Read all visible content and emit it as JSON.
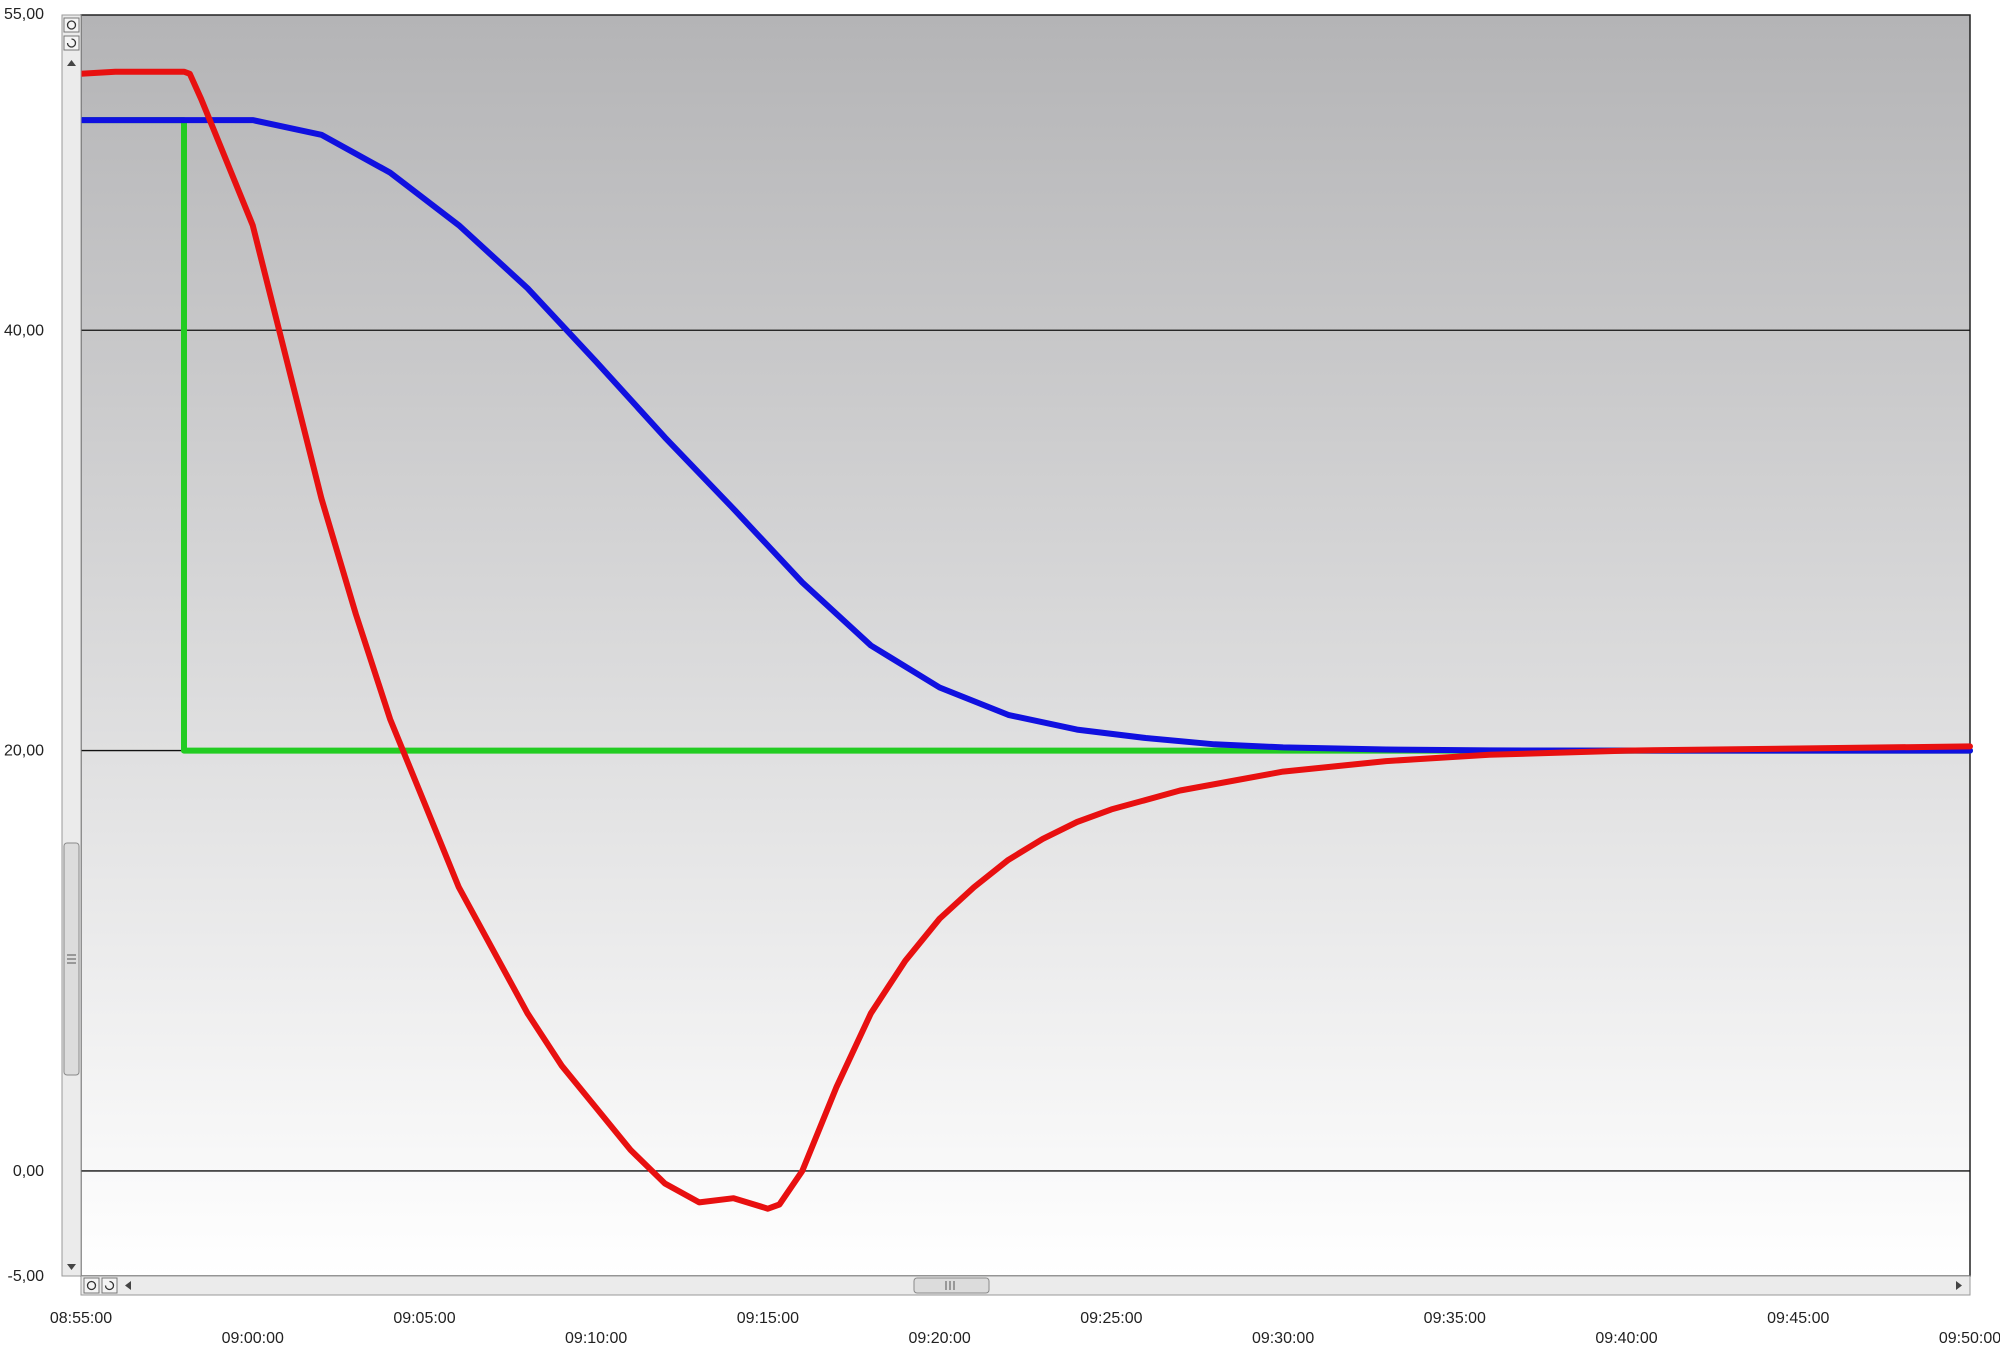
{
  "chart_data": {
    "type": "line",
    "title": "",
    "xlabel": "",
    "ylabel": "",
    "xlim": [
      "08:55:00",
      "09:50:00"
    ],
    "ylim": [
      -5,
      55
    ],
    "grid": true,
    "legend": "none",
    "y_ticks": [
      {
        "value": 55,
        "label": "55,00"
      },
      {
        "value": 40,
        "label": "40,00"
      },
      {
        "value": 20,
        "label": "20,00"
      },
      {
        "value": 0,
        "label": "0,00"
      },
      {
        "value": -5,
        "label": "-5,00"
      }
    ],
    "y_gridlines": [
      40,
      20,
      0
    ],
    "x_ticks": [
      "08:55:00",
      "09:00:00",
      "09:05:00",
      "09:10:00",
      "09:15:00",
      "09:20:00",
      "09:25:00",
      "09:30:00",
      "09:35:00",
      "09:40:00",
      "09:45:00",
      "09:50:00"
    ],
    "series": [
      {
        "color": "#e81010",
        "x": [
          "08:55:00",
          "08:56:00",
          "08:57:00",
          "08:58:00",
          "08:58:10",
          "08:58:30",
          "08:59:00",
          "09:00:00",
          "09:01:00",
          "09:02:00",
          "09:03:00",
          "09:04:00",
          "09:05:00",
          "09:06:00",
          "09:07:00",
          "09:08:00",
          "09:09:00",
          "09:10:00",
          "09:11:00",
          "09:12:00",
          "09:13:00",
          "09:14:00",
          "09:15:00",
          "09:15:20",
          "09:16:00",
          "09:17:00",
          "09:18:00",
          "09:19:00",
          "09:20:00",
          "09:21:00",
          "09:22:00",
          "09:23:00",
          "09:24:00",
          "09:25:00",
          "09:27:00",
          "09:30:00",
          "09:33:00",
          "09:36:00",
          "09:40:00",
          "09:45:00",
          "09:50:00"
        ],
        "values": [
          52.2,
          52.3,
          52.3,
          52.3,
          52.2,
          51,
          49,
          45,
          38.5,
          32,
          26.5,
          21.5,
          17.5,
          13.5,
          10.5,
          7.5,
          5,
          3,
          1,
          -0.6,
          -1.5,
          -1.3,
          -1.8,
          -1.6,
          0,
          4,
          7.5,
          10,
          12,
          13.5,
          14.8,
          15.8,
          16.6,
          17.2,
          18.1,
          19,
          19.5,
          19.8,
          20,
          20.1,
          20.2
        ]
      },
      {
        "color": "#1010e0",
        "x": [
          "08:55:00",
          "08:58:00",
          "09:00:00",
          "09:02:00",
          "09:04:00",
          "09:06:00",
          "09:08:00",
          "09:10:00",
          "09:12:00",
          "09:14:00",
          "09:16:00",
          "09:18:00",
          "09:20:00",
          "09:22:00",
          "09:24:00",
          "09:26:00",
          "09:28:00",
          "09:30:00",
          "09:33:00",
          "09:36:00",
          "09:40:00",
          "09:45:00",
          "09:50:00"
        ],
        "values": [
          50,
          50,
          50,
          49.3,
          47.5,
          45,
          42,
          38.5,
          34.9,
          31.5,
          28,
          25,
          23,
          21.7,
          21,
          20.6,
          20.3,
          20.15,
          20.05,
          20.01,
          20,
          20,
          20
        ]
      },
      {
        "color": "#22cc22",
        "x": [
          "08:55:00",
          "08:58:00",
          "08:58:00",
          "09:50:00"
        ],
        "values": [
          50,
          50,
          20,
          20
        ]
      }
    ]
  }
}
